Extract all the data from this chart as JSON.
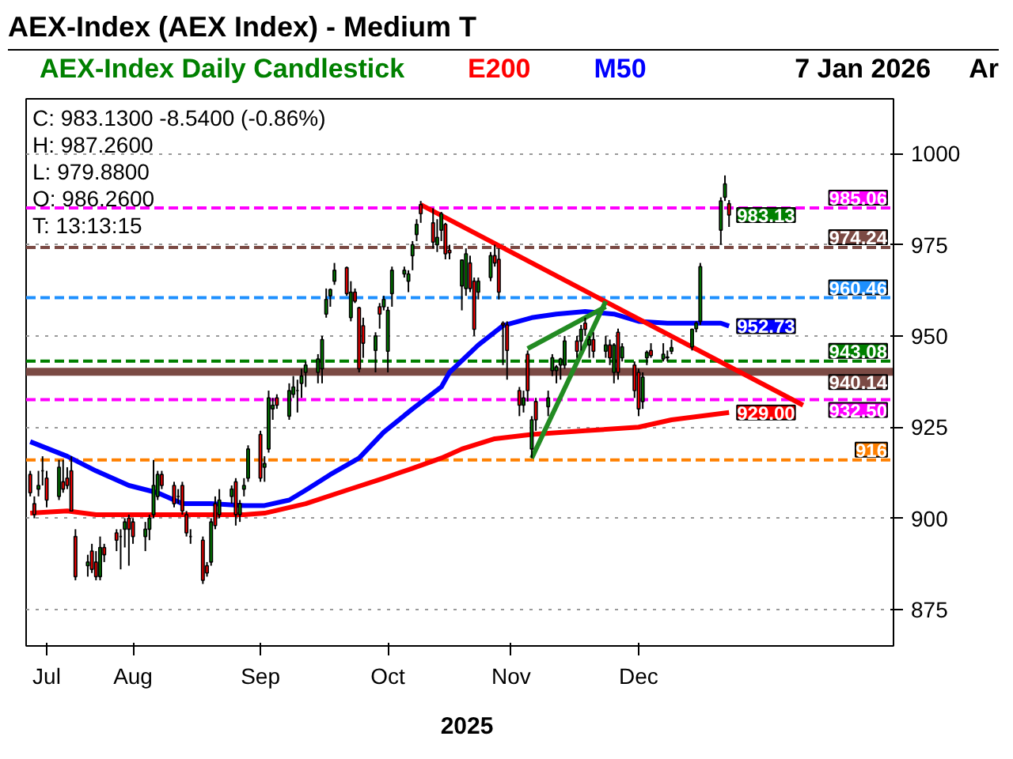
{
  "chart_data": {
    "type": "candlestick",
    "title": "AEX-Index (AEX Index) - Medium T",
    "subtitle": "AEX-Index Daily Candlestick",
    "x": [
      "2025-07-21",
      "2025-07-22",
      "2025-07-23",
      "2025-07-24",
      "2025-07-25",
      "2025-07-28",
      "2025-07-29",
      "2025-07-30",
      "2025-07-31",
      "2025-08-01",
      "2025-08-04",
      "2025-08-05",
      "2025-08-06",
      "2025-08-07",
      "2025-08-08",
      "2025-08-11",
      "2025-08-12",
      "2025-08-13",
      "2025-08-14",
      "2025-08-15",
      "2025-08-18",
      "2025-08-19",
      "2025-08-20",
      "2025-08-21",
      "2025-08-22",
      "2025-08-25",
      "2025-08-26",
      "2025-08-27",
      "2025-08-28",
      "2025-08-29",
      "2025-09-01",
      "2025-09-02",
      "2025-09-03",
      "2025-09-04",
      "2025-09-05",
      "2025-09-08",
      "2025-09-09",
      "2025-09-10",
      "2025-09-11",
      "2025-09-12",
      "2025-09-15",
      "2025-09-16",
      "2025-09-17",
      "2025-09-18",
      "2025-09-19",
      "2025-09-22",
      "2025-09-23",
      "2025-09-24",
      "2025-09-25",
      "2025-09-26",
      "2025-09-29",
      "2025-09-30",
      "2025-10-01",
      "2025-10-02",
      "2025-10-03",
      "2025-10-06",
      "2025-10-07",
      "2025-10-08",
      "2025-10-09",
      "2025-10-10",
      "2025-10-13",
      "2025-10-14",
      "2025-10-15",
      "2025-10-16",
      "2025-10-17",
      "2025-10-20",
      "2025-10-21",
      "2025-10-22",
      "2025-10-23",
      "2025-10-24",
      "2025-10-27",
      "2025-10-28",
      "2025-10-29",
      "2025-10-30",
      "2025-10-31",
      "2025-11-03",
      "2025-11-04",
      "2025-11-05",
      "2025-11-06",
      "2025-11-07",
      "2025-11-10",
      "2025-11-11",
      "2025-11-12",
      "2025-11-13",
      "2025-11-14",
      "2025-11-17",
      "2025-11-18",
      "2025-11-19",
      "2025-11-20",
      "2025-11-21",
      "2025-11-24",
      "2025-11-25",
      "2025-11-26",
      "2025-11-27",
      "2025-11-28",
      "2025-12-01",
      "2025-12-02",
      "2025-12-03",
      "2025-12-04",
      "2025-12-05",
      "2025-12-08",
      "2025-12-09",
      "2025-12-10",
      "2025-12-11",
      "2025-12-12",
      "2025-12-15",
      "2025-12-16",
      "2025-12-17",
      "2025-12-18",
      "2025-12-19",
      "2025-12-22",
      "2025-12-23",
      "2025-12-24",
      "2025-12-29",
      "2025-12-30",
      "2025-12-31",
      "2026-01-05",
      "2026-01-06",
      "2026-01-07"
    ],
    "ohlc": [
      [
        912,
        913,
        906,
        907
      ],
      [
        904,
        906,
        900,
        901
      ],
      [
        908,
        913,
        906,
        909
      ],
      [
        913,
        917,
        909,
        913
      ],
      [
        911,
        913,
        903,
        905
      ],
      [
        906,
        916,
        905,
        914
      ],
      [
        910,
        916,
        907,
        908
      ],
      [
        911,
        914,
        908,
        909
      ],
      [
        913,
        917,
        902,
        902
      ],
      [
        895,
        897,
        883,
        884
      ],
      [
        887,
        890,
        884,
        888
      ],
      [
        891,
        893,
        885,
        886
      ],
      [
        888,
        891,
        883,
        884
      ],
      [
        884,
        895,
        883,
        892
      ],
      [
        892,
        893,
        888,
        890
      ],
      [
        896,
        897,
        891,
        894
      ],
      [
        895,
        897,
        886,
        895
      ],
      [
        897,
        900,
        892,
        899
      ],
      [
        900,
        901,
        887,
        897
      ],
      [
        899,
        900,
        893,
        895
      ],
      [
        895,
        899,
        891,
        897
      ],
      [
        897,
        901,
        894,
        900
      ],
      [
        901,
        916,
        900,
        909
      ],
      [
        906,
        913,
        905,
        912
      ],
      [
        912,
        913,
        908,
        909
      ],
      [
        909,
        910,
        903,
        904
      ],
      [
        906,
        908,
        904,
        906
      ],
      [
        909,
        910,
        901,
        902
      ],
      [
        901,
        902,
        895,
        896
      ],
      [
        895,
        897,
        893,
        895
      ],
      [
        894,
        895,
        882,
        883
      ],
      [
        887,
        888,
        884,
        885
      ],
      [
        888,
        900,
        887,
        899
      ],
      [
        904,
        906,
        897,
        898
      ],
      [
        901,
        908,
        900,
        905
      ],
      [
        906,
        909,
        904,
        908
      ],
      [
        910,
        911,
        898,
        901
      ],
      [
        901,
        905,
        899,
        904
      ],
      [
        908,
        911,
        906,
        909
      ],
      [
        911,
        920,
        910,
        919
      ],
      [
        923,
        924,
        910,
        911
      ],
      [
        914,
        917,
        910,
        915
      ],
      [
        919,
        935,
        918,
        933
      ],
      [
        930,
        933,
        927,
        931
      ],
      [
        933,
        934,
        930,
        931
      ],
      [
        928,
        937,
        927,
        935
      ],
      [
        934,
        939,
        933,
        936
      ],
      [
        935,
        938,
        929,
        935
      ],
      [
        937,
        941,
        933,
        939
      ],
      [
        940,
        943,
        936,
        942
      ],
      [
        940,
        945,
        937,
        943.7
      ],
      [
        941,
        950,
        937,
        949
      ],
      [
        956,
        963,
        955,
        960
      ],
      [
        961,
        963,
        958,
        962.7
      ],
      [
        965,
        970,
        964,
        968
      ],
      [
        968.7,
        969,
        961,
        961.6
      ],
      [
        955,
        965,
        954,
        962
      ],
      [
        962,
        963,
        959,
        959.5
      ],
      [
        957.7,
        958,
        940,
        941
      ],
      [
        952.8,
        955,
        944,
        948
      ],
      [
        946,
        951,
        940,
        950
      ],
      [
        958,
        959,
        952,
        956
      ],
      [
        958,
        961,
        957,
        960
      ],
      [
        945.8,
        958,
        940,
        957
      ],
      [
        961.6,
        969,
        958,
        968
      ],
      [
        967,
        969,
        966,
        968
      ],
      [
        965,
        968,
        962,
        967
      ],
      [
        972,
        976,
        968,
        975
      ],
      [
        977.8,
        982,
        976,
        980.6
      ],
      [
        986,
        987,
        981,
        983.5
      ],
      [
        981,
        985,
        974,
        975.7
      ],
      [
        975,
        982,
        973,
        977
      ],
      [
        979,
        984,
        976,
        983.5
      ],
      [
        980.6,
        981,
        971,
        972.5
      ],
      [
        973.5,
        975,
        971,
        972.8
      ],
      [
        963.7,
        971,
        957,
        970.8
      ],
      [
        963,
        974,
        961,
        972.5
      ],
      [
        970,
        972,
        962,
        963
      ],
      [
        965,
        966,
        950,
        951.8
      ],
      [
        962,
        966,
        960,
        965
      ],
      [
        966,
        973,
        965,
        972
      ],
      [
        972,
        975,
        969,
        970
      ],
      [
        971,
        974,
        960,
        962
      ],
      [
        953.5,
        954,
        942,
        953
      ],
      [
        953,
        954,
        938,
        946
      ],
      [
        935,
        936,
        928,
        931
      ],
      [
        931,
        935,
        929,
        933
      ],
      [
        945,
        946,
        932,
        935
      ],
      [
        919,
        928,
        916.5,
        927
      ],
      [
        932,
        933,
        924,
        927
      ],
      [
        930.6,
        935,
        928,
        933
      ],
      [
        940.5,
        945,
        939,
        944
      ],
      [
        940.5,
        942,
        937,
        941.5
      ],
      [
        942,
        944,
        938,
        943.7
      ],
      [
        942,
        950,
        941,
        948.6
      ],
      [
        948.6,
        950,
        944,
        945.8
      ],
      [
        948.6,
        953,
        946,
        951.8
      ],
      [
        953.5,
        955,
        950,
        951.8
      ],
      [
        947.5,
        950,
        944,
        949
      ],
      [
        949,
        951,
        944,
        945.8
      ],
      [
        945.8,
        950,
        944,
        947.5
      ],
      [
        947.5,
        949,
        942,
        944
      ],
      [
        940,
        948,
        937,
        947.5
      ],
      [
        951,
        952,
        938,
        940
      ],
      [
        944,
        948,
        943,
        947
      ],
      [
        942,
        943,
        933,
        935
      ],
      [
        940,
        941,
        928,
        930
      ],
      [
        932,
        940,
        930,
        938.7
      ],
      [
        944,
        946,
        942,
        945.5
      ],
      [
        946,
        948,
        944,
        944.6
      ],
      [
        943.7,
        948,
        943,
        945
      ],
      [
        944,
        946,
        943,
        944.2
      ],
      [
        945.8,
        949,
        945,
        946.8
      ],
      [
        947,
        952,
        946,
        951.8
      ],
      [
        952,
        954,
        951,
        953.5
      ],
      [
        954,
        970,
        953,
        969
      ],
      [
        979,
        988,
        975,
        987
      ],
      [
        988,
        994,
        987,
        991.67
      ],
      [
        986.26,
        987.26,
        979.88,
        983.13
      ]
    ],
    "series": [
      {
        "name": "E200",
        "type": "line",
        "color": "#ff0000",
        "x": [
          "2025-07-21",
          "2025-07-30",
          "2025-08-06",
          "2025-08-14",
          "2025-08-27",
          "2025-09-11",
          "2025-09-16",
          "2025-09-26",
          "2025-10-06",
          "2025-10-15",
          "2025-10-22",
          "2025-10-29",
          "2025-11-03",
          "2025-11-11",
          "2025-11-20",
          "2025-12-03",
          "2025-12-16",
          "2025-12-24",
          "2026-01-07"
        ],
        "values": [
          901.4,
          902,
          901,
          901,
          901,
          901,
          901.4,
          904,
          907.7,
          911,
          913.7,
          916.5,
          919,
          921.8,
          923,
          924,
          925,
          927,
          929
        ]
      },
      {
        "name": "M50",
        "type": "line",
        "color": "#0000ff",
        "x": [
          "2025-07-21",
          "2025-07-30",
          "2025-08-06",
          "2025-08-14",
          "2025-08-21",
          "2025-08-27",
          "2025-09-03",
          "2025-09-11",
          "2025-09-16",
          "2025-09-22",
          "2025-09-26",
          "2025-10-02",
          "2025-10-09",
          "2025-10-15",
          "2025-10-22",
          "2025-10-29",
          "2025-10-31",
          "2025-11-07",
          "2025-11-13",
          "2025-11-20",
          "2025-11-26",
          "2025-12-03",
          "2025-12-10",
          "2025-12-16",
          "2025-12-23",
          "2026-01-05",
          "2026-01-07"
        ],
        "values": [
          921,
          917,
          913,
          909,
          907,
          904,
          904,
          903.5,
          903.5,
          905,
          907.7,
          912,
          916.5,
          923.6,
          930,
          936,
          940,
          947.5,
          952.8,
          955,
          956,
          956.7,
          956,
          954,
          953.5,
          953.5,
          952.7
        ]
      },
      {
        "type": "line",
        "color": "#ff0000",
        "x": [
          "2025-10-24",
          "2026-01-25"
        ],
        "values": [
          986,
          931
        ]
      },
      {
        "type": "line",
        "color": "#228b22",
        "x": [
          "2025-11-20",
          "2025-12-08"
        ],
        "values": [
          916.5,
          959.5
        ]
      },
      {
        "type": "line",
        "color": "#228b22",
        "x": [
          "2025-11-19",
          "2025-12-08"
        ],
        "values": [
          946.5,
          958
        ]
      }
    ],
    "xlim": [
      "2025-07-20",
      "2026-02-16"
    ],
    "xticks": [
      {
        "value": "2025-07-25",
        "label": "Jul"
      },
      {
        "value": "2025-08-15",
        "label": "Aug"
      },
      {
        "value": "2025-09-15",
        "label": "Sep"
      },
      {
        "value": "2025-10-16",
        "label": "Oct"
      },
      {
        "value": "2025-11-15",
        "label": "Nov"
      },
      {
        "value": "2025-12-16",
        "label": "Dec"
      }
    ],
    "ylim": [
      865,
      1015
    ],
    "yticks": [
      875,
      900,
      925,
      950,
      975,
      1000
    ],
    "grid": "y",
    "ref_lines": [
      {
        "axis": "y",
        "value": 985.06,
        "label": "985.06",
        "color": "#ff00ff",
        "line_style": "dashed"
      },
      {
        "axis": "y",
        "value": 974.24,
        "label": "974.24",
        "color": "#7b4a44",
        "line_style": "dashed"
      },
      {
        "axis": "y",
        "value": 960.46,
        "label": "960.46",
        "color": "#1e90ff",
        "line_style": "dashed"
      },
      {
        "axis": "y",
        "value": 943.08,
        "label": "943.08",
        "color": "#008000",
        "line_style": "dashed"
      },
      {
        "axis": "y",
        "value": 940.14,
        "label": "940.14",
        "color": "#7b4a44",
        "line_style": "solid"
      },
      {
        "axis": "y",
        "value": 932.5,
        "label": "932.50",
        "color": "#ff00ff",
        "line_style": "dashed"
      },
      {
        "axis": "y",
        "value": 916,
        "label": "916",
        "color": "#ff8000",
        "line_style": "dashed"
      }
    ],
    "annotations": [
      "7 Jan 2026",
      "Ar",
      "C: 983.1300 -8.5400 (-0.86%)",
      "H: 987.2600",
      "L: 979.8800",
      "O: 986.2600",
      "T: 13:13:15",
      "2025",
      {
        "text": "983.13",
        "x": "2026-01-07",
        "y": 983.13
      },
      {
        "text": "952.73",
        "x": "2026-01-07",
        "y": 952.7
      },
      {
        "text": "929.00",
        "x": "2026-01-07",
        "y": 929
      }
    ]
  }
}
